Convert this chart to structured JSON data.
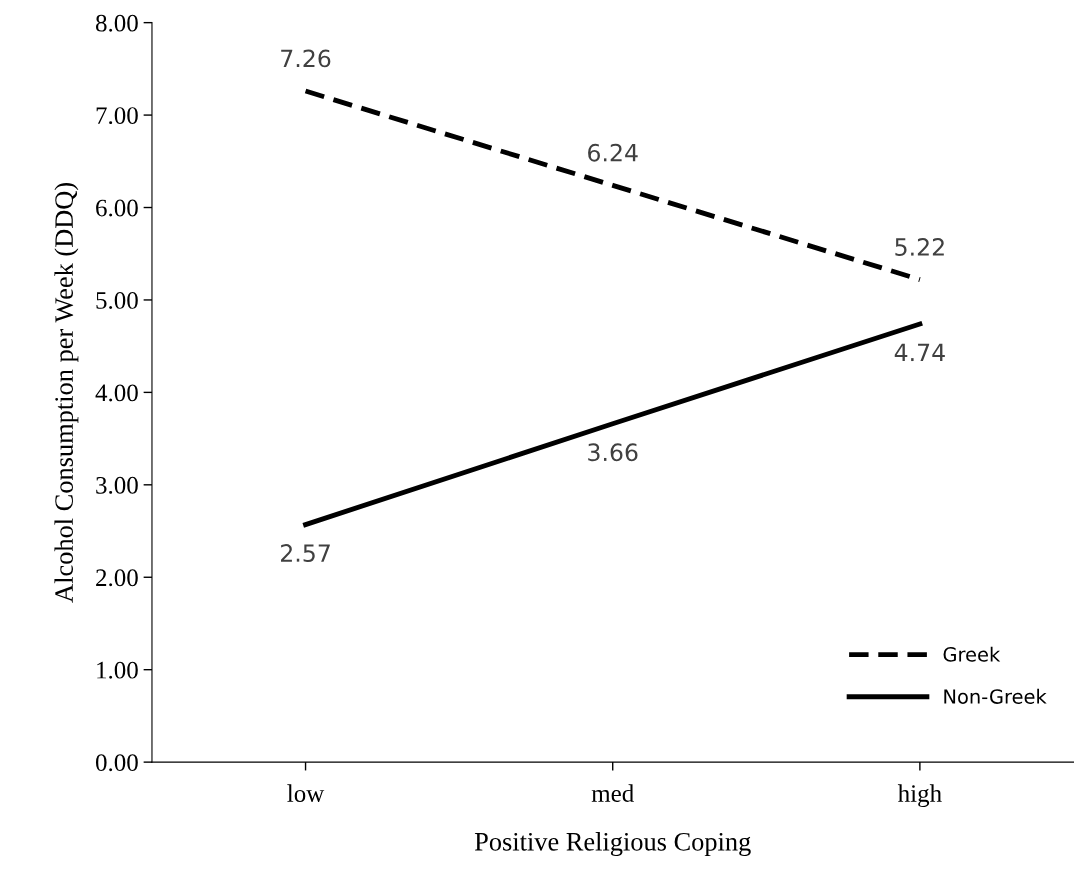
{
  "chart_data": {
    "type": "line",
    "xlabel": "Positive Religious Coping",
    "ylabel": "Alcohol Consumption per Week (DDQ)",
    "categories": [
      "low",
      "med",
      "high"
    ],
    "series": [
      {
        "name": "Greek",
        "color": "#000000",
        "line_style": "dashed",
        "values": [
          7.26,
          6.24,
          5.22
        ]
      },
      {
        "name": "Non-Greek",
        "color": "#000000",
        "line_style": "solid",
        "values": [
          2.57,
          3.66,
          4.74
        ]
      }
    ],
    "ylim": [
      0,
      8
    ],
    "yticks": [
      {
        "value": 0,
        "label": "0.00"
      },
      {
        "value": 1,
        "label": "1.00"
      },
      {
        "value": 2,
        "label": "2.00"
      },
      {
        "value": 3,
        "label": "3.00"
      },
      {
        "value": 4,
        "label": "4.00"
      },
      {
        "value": 5,
        "label": "5.00"
      },
      {
        "value": 6,
        "label": "6.00"
      },
      {
        "value": 7,
        "label": "7.00"
      },
      {
        "value": 8,
        "label": "8.00"
      }
    ],
    "data_labels": true,
    "legend": "bottom right",
    "grid": false,
    "marker": "none"
  }
}
